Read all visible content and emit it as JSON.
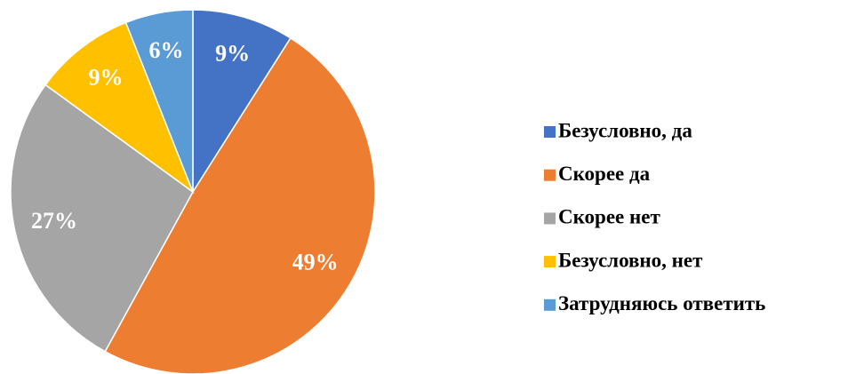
{
  "chart_data": {
    "type": "pie",
    "categories": [
      "Безусловно, да",
      "Скорее да",
      "Скорее нет",
      "Безусловно, нет",
      "Затрудняюсь ответить"
    ],
    "values": [
      9,
      49,
      27,
      9,
      6
    ],
    "value_labels": [
      "9%",
      "49%",
      "27%",
      "9%",
      "6%"
    ],
    "colors": [
      "#4472c4",
      "#ed7d31",
      "#a5a5a5",
      "#ffc000",
      "#5b9bd5"
    ],
    "legend": "right"
  }
}
